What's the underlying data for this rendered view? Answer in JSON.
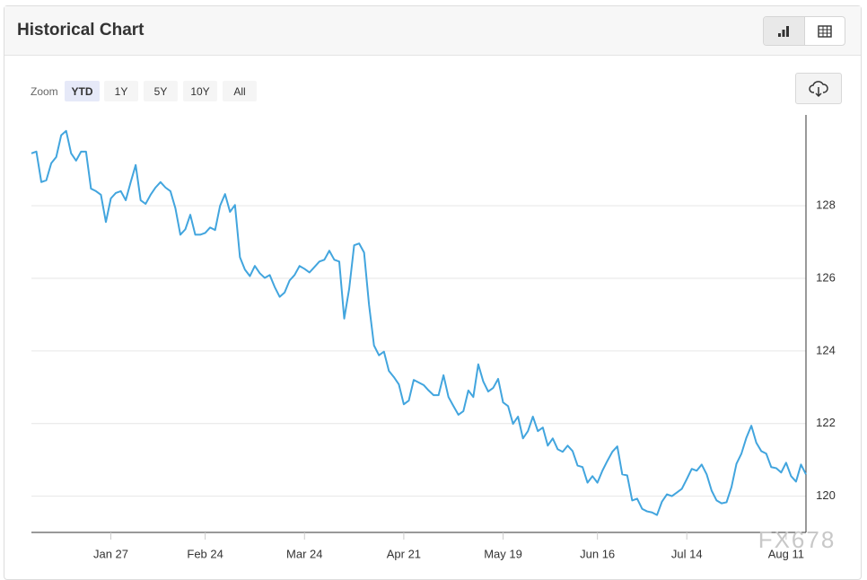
{
  "header": {
    "title": "Historical Chart"
  },
  "zoom": {
    "label": "Zoom",
    "buttons": [
      "YTD",
      "1Y",
      "5Y",
      "10Y",
      "All"
    ],
    "active": 0
  },
  "watermark": "FX678",
  "chart_data": {
    "type": "line",
    "color": "#42a5de",
    "grid": true,
    "categories": [
      null,
      null,
      null,
      null,
      null,
      null,
      null,
      null,
      null,
      null,
      null,
      null,
      null,
      null,
      null,
      null,
      "Jan 27",
      null,
      null,
      null,
      null,
      null,
      null,
      null,
      null,
      null,
      null,
      null,
      null,
      null,
      null,
      null,
      null,
      null,
      null,
      "Feb 24",
      null,
      null,
      null,
      null,
      null,
      null,
      null,
      null,
      null,
      null,
      null,
      null,
      null,
      null,
      null,
      null,
      null,
      null,
      null,
      "Mar 24",
      null,
      null,
      null,
      null,
      null,
      null,
      null,
      null,
      null,
      null,
      null,
      null,
      null,
      null,
      null,
      null,
      null,
      null,
      null,
      "Apr 21",
      null,
      null,
      null,
      null,
      null,
      null,
      null,
      null,
      null,
      null,
      null,
      null,
      null,
      null,
      null,
      null,
      null,
      null,
      null,
      "May 19",
      null,
      null,
      null,
      null,
      null,
      null,
      null,
      null,
      null,
      null,
      null,
      null,
      null,
      null,
      null,
      null,
      null,
      null,
      "Jun 16",
      null,
      null,
      null,
      null,
      null,
      null,
      null,
      null,
      null,
      null,
      null,
      null,
      null,
      null,
      null,
      null,
      null,
      "Jul 14",
      null,
      null,
      null,
      null,
      null,
      null,
      null,
      null,
      null,
      null,
      null,
      null,
      null,
      null,
      null,
      null,
      null,
      null,
      null,
      "Aug 11",
      null,
      null,
      null,
      null
    ],
    "values": [
      129.44,
      129.49,
      128.65,
      128.7,
      129.17,
      129.34,
      129.94,
      130.06,
      129.44,
      129.24,
      129.49,
      129.49,
      128.47,
      128.4,
      128.3,
      127.55,
      128.2,
      128.35,
      128.4,
      128.15,
      128.65,
      129.12,
      128.15,
      128.05,
      128.3,
      128.5,
      128.65,
      128.5,
      128.4,
      127.93,
      127.2,
      127.35,
      127.75,
      127.2,
      127.2,
      127.25,
      127.4,
      127.33,
      128.0,
      128.32,
      127.83,
      128.02,
      126.58,
      126.24,
      126.06,
      126.34,
      126.14,
      126.01,
      126.09,
      125.76,
      125.49,
      125.61,
      125.94,
      126.09,
      126.34,
      126.26,
      126.16,
      126.31,
      126.46,
      126.51,
      126.76,
      126.51,
      126.46,
      124.89,
      125.71,
      126.91,
      126.96,
      126.71,
      125.27,
      124.15,
      123.88,
      123.98,
      123.45,
      123.28,
      123.08,
      122.53,
      122.63,
      123.2,
      123.13,
      123.06,
      122.91,
      122.78,
      122.78,
      123.33,
      122.73,
      122.48,
      122.24,
      122.34,
      122.91,
      122.73,
      123.63,
      123.16,
      122.88,
      122.98,
      123.23,
      122.58,
      122.48,
      121.99,
      122.19,
      121.59,
      121.79,
      122.19,
      121.79,
      121.89,
      121.39,
      121.59,
      121.29,
      121.22,
      121.39,
      121.24,
      120.84,
      120.8,
      120.37,
      120.55,
      120.37,
      120.7,
      120.97,
      121.22,
      121.37,
      120.6,
      120.57,
      119.88,
      119.93,
      119.65,
      119.58,
      119.55,
      119.48,
      119.85,
      120.05,
      120.0,
      120.1,
      120.2,
      120.47,
      120.75,
      120.7,
      120.87,
      120.6,
      120.15,
      119.88,
      119.8,
      119.83,
      120.25,
      120.89,
      121.17,
      121.61,
      121.94,
      121.47,
      121.24,
      121.17,
      120.8,
      120.77,
      120.65,
      120.92,
      120.55,
      120.4,
      120.87,
      120.6
    ],
    "ylim": [
      119,
      130.5
    ],
    "yticks": [
      120,
      122,
      124,
      126,
      128
    ]
  }
}
